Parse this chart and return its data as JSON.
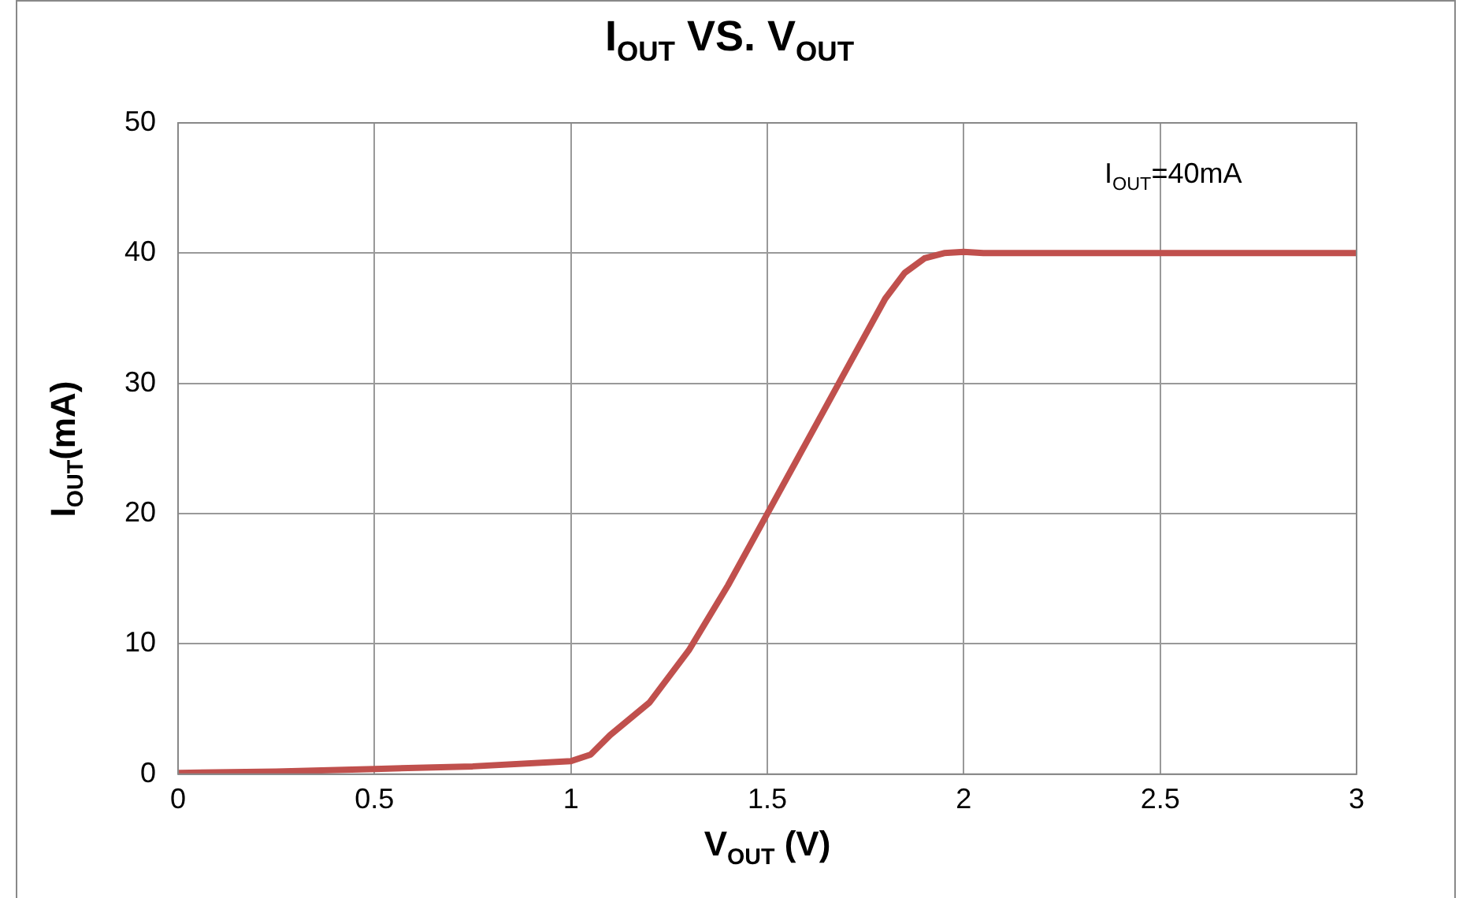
{
  "chart_data": {
    "type": "line",
    "title": "I$_{OUT}$ VS. V$_{OUT}$",
    "xlabel": "V$_{OUT}$ (V)",
    "ylabel": "I$_{OUT}$(mA)",
    "annotations": [
      "I$_{OUT}$=40mA"
    ],
    "x": [
      0,
      0.25,
      0.5,
      0.75,
      1.0,
      1.05,
      1.1,
      1.2,
      1.3,
      1.4,
      1.5,
      1.6,
      1.7,
      1.8,
      1.85,
      1.9,
      1.95,
      2.0,
      2.05,
      2.1,
      2.5,
      3.0
    ],
    "series": [
      {
        "color": "#c0504d",
        "values": [
          0.1,
          0.2,
          0.4,
          0.6,
          1.0,
          1.5,
          3,
          5.5,
          9.5,
          14.5,
          20,
          25.5,
          31,
          36.5,
          38.5,
          39.6,
          40,
          40.1,
          40,
          40,
          40,
          40
        ]
      }
    ],
    "xlim": [
      0,
      3
    ],
    "xticks": [
      0,
      0.5,
      1,
      1.5,
      2,
      2.5,
      3
    ],
    "ylim": [
      0,
      50
    ],
    "yticks": [
      0,
      10,
      20,
      30,
      40,
      50
    ],
    "grid": true,
    "legend": false,
    "marker": "none",
    "line_style": "solid"
  }
}
